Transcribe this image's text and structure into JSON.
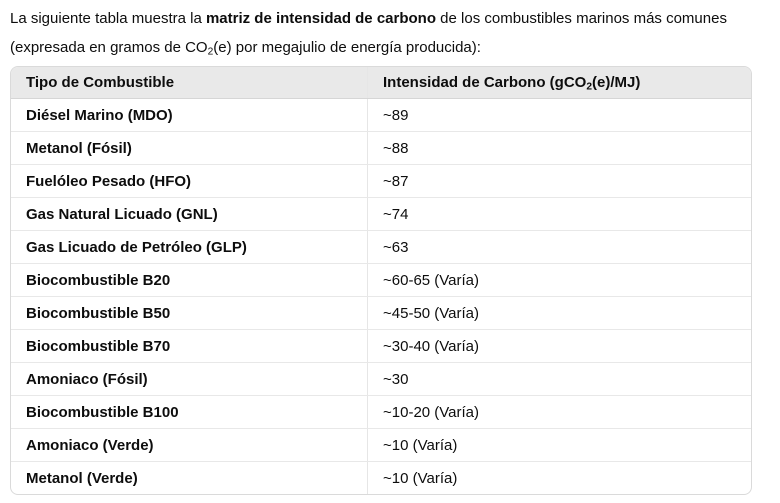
{
  "intro": {
    "text_before_bold": "La siguiente tabla muestra la ",
    "bold_phrase": "matriz de intensidad de carbono",
    "text_after_bold": " de los combustibles marinos más comunes (expresada en gramos de CO",
    "subscript": "2",
    "text_after_subscript": "(e) por megajulio de energía producida):"
  },
  "table": {
    "header_fuel": "Tipo de Combustible",
    "header_intensity": {
      "pre": "Intensidad de Carbono (gCO",
      "sub": "2",
      "post": "(e)/MJ)"
    },
    "rows": [
      {
        "fuel": "Diésel Marino (MDO)",
        "value": "~89"
      },
      {
        "fuel": "Metanol (Fósil)",
        "value": "~88"
      },
      {
        "fuel": "Fuelóleo Pesado (HFO)",
        "value": "~87"
      },
      {
        "fuel": "Gas Natural Licuado (GNL)",
        "value": "~74"
      },
      {
        "fuel": "Gas Licuado de Petróleo (GLP)",
        "value": "~63"
      },
      {
        "fuel": "Biocombustible B20",
        "value": "~60-65 (Varía)"
      },
      {
        "fuel": "Biocombustible B50",
        "value": "~45-50 (Varía)"
      },
      {
        "fuel": "Biocombustible B70",
        "value": "~30-40 (Varía)"
      },
      {
        "fuel": "Amoniaco (Fósil)",
        "value": "~30"
      },
      {
        "fuel": "Biocombustible B100",
        "value": "~10-20 (Varía)"
      },
      {
        "fuel": "Amoniaco (Verde)",
        "value": "~10 (Varía)"
      },
      {
        "fuel": "Metanol (Verde)",
        "value": "~10 (Varía)"
      }
    ]
  },
  "colors": {
    "page_background": "#ffffff",
    "text": "#0d0d0d",
    "table_header_background": "#e9e9e9",
    "table_outer_border": "#dadada",
    "table_inner_border": "#e8e8e8"
  }
}
